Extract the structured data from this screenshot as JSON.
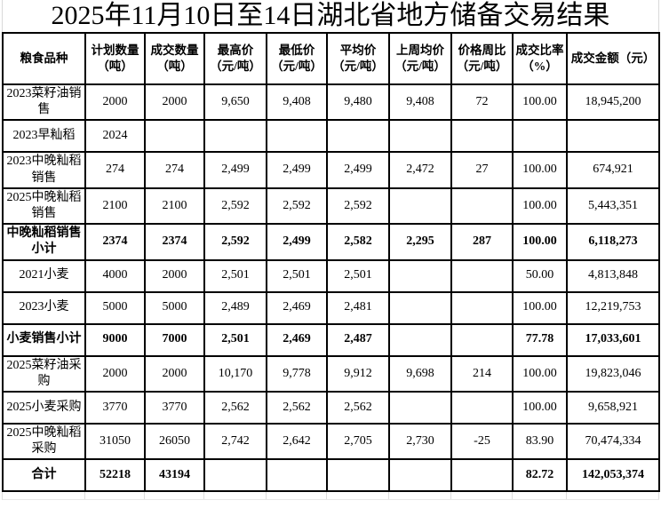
{
  "title": "2025年11月10日至14日湖北省地方储备交易结果",
  "colors": {
    "border": "#000000",
    "gridline": "#d9d9d9",
    "text": "#000000",
    "background": "#ffffff"
  },
  "table": {
    "headers": [
      "粮食品种",
      "计划数量\n（吨）",
      "成交数量\n（吨）",
      "最高价\n（元/吨）",
      "最低价\n（元/吨）",
      "平均价\n（元/吨）",
      "上周均价\n（元/吨）",
      "价格周比\n（元/吨）",
      "成交比率\n（%）",
      "成交金额（元）"
    ],
    "rows": [
      {
        "name": "2023菜籽油销售",
        "bold": false,
        "values": [
          "2000",
          "2000",
          "9,650",
          "9,408",
          "9,480",
          "9,408",
          "72",
          "100.00",
          "18,945,200"
        ]
      },
      {
        "name": "2023早籼稻",
        "bold": false,
        "values": [
          "2024",
          "",
          "",
          "",
          "",
          "",
          "",
          "",
          ""
        ]
      },
      {
        "name": "2023中晚籼稻销售",
        "bold": false,
        "values": [
          "274",
          "274",
          "2,499",
          "2,499",
          "2,499",
          "2,472",
          "27",
          "100.00",
          "674,921"
        ]
      },
      {
        "name": "2025中晚籼稻销售",
        "bold": false,
        "values": [
          "2100",
          "2100",
          "2,592",
          "2,592",
          "2,592",
          "",
          "",
          "100.00",
          "5,443,351"
        ]
      },
      {
        "name": "中晚籼稻销售小计",
        "bold": true,
        "values": [
          "2374",
          "2374",
          "2,592",
          "2,499",
          "2,582",
          "2,295",
          "287",
          "100.00",
          "6,118,273"
        ]
      },
      {
        "name": "2021小麦",
        "bold": false,
        "values": [
          "4000",
          "2000",
          "2,501",
          "2,501",
          "2,501",
          "",
          "",
          "50.00",
          "4,813,848"
        ]
      },
      {
        "name": "2023小麦",
        "bold": false,
        "values": [
          "5000",
          "5000",
          "2,489",
          "2,469",
          "2,481",
          "",
          "",
          "100.00",
          "12,219,753"
        ]
      },
      {
        "name": "小麦销售小计",
        "bold": true,
        "values": [
          "9000",
          "7000",
          "2,501",
          "2,469",
          "2,487",
          "",
          "",
          "77.78",
          "17,033,601"
        ]
      },
      {
        "name": "2025菜籽油采购",
        "bold": false,
        "values": [
          "2000",
          "2000",
          "10,170",
          "9,778",
          "9,912",
          "9,698",
          "214",
          "100.00",
          "19,823,046"
        ]
      },
      {
        "name": "2025小麦采购",
        "bold": false,
        "values": [
          "3770",
          "3770",
          "2,562",
          "2,562",
          "2,562",
          "",
          "",
          "100.00",
          "9,658,921"
        ]
      },
      {
        "name": "2025中晚籼稻采购",
        "bold": false,
        "values": [
          "31050",
          "26050",
          "2,742",
          "2,642",
          "2,705",
          "2,730",
          "-25",
          "83.90",
          "70,474,334"
        ]
      },
      {
        "name": "合计",
        "bold": true,
        "values": [
          "52218",
          "43194",
          "",
          "",
          "",
          "",
          "",
          "82.72",
          "142,053,374"
        ]
      }
    ]
  }
}
